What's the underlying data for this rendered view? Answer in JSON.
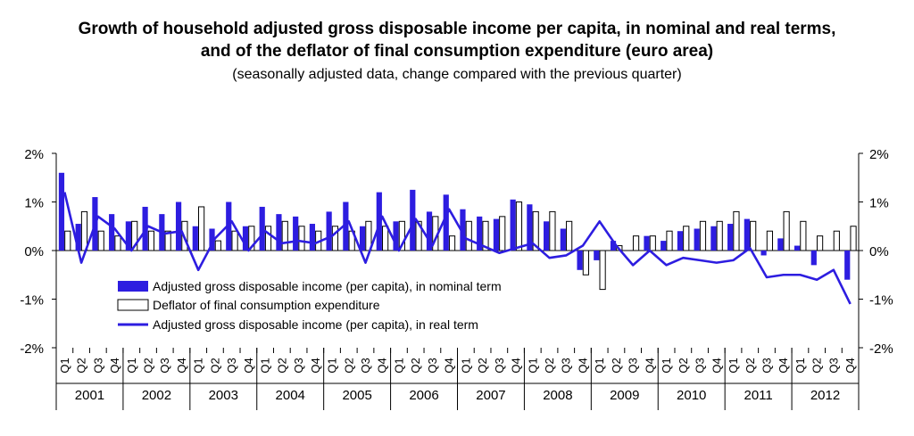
{
  "chart_data": {
    "type": "bar",
    "title_lines": [
      "Growth of household adjusted gross disposable income per capita, in nominal and real terms,",
      "and of the deflator of final consumption expenditure (euro area)"
    ],
    "subtitle": "(seasonally adjusted data, change compared with the previous quarter)",
    "y_ticks": [
      "2%",
      "1%",
      "0%",
      "-1%",
      "-2%"
    ],
    "ylim": [
      -2,
      2
    ],
    "years": [
      "2001",
      "2002",
      "2003",
      "2004",
      "2005",
      "2006",
      "2007",
      "2008",
      "2009",
      "2010",
      "2011",
      "2012"
    ],
    "quarter_labels": [
      "Q1",
      "Q2",
      "Q3",
      "Q4"
    ],
    "series": [
      {
        "name": "Adjusted gross disposable income (per capita), in nominal term",
        "kind": "bar",
        "color": "#2d1de0",
        "values": [
          1.6,
          0.55,
          1.1,
          0.75,
          0.6,
          0.9,
          0.75,
          1.0,
          0.5,
          0.45,
          1.0,
          0.5,
          0.9,
          0.75,
          0.7,
          0.55,
          0.8,
          1.0,
          0.5,
          1.2,
          0.6,
          1.25,
          0.8,
          1.15,
          0.85,
          0.7,
          0.65,
          1.05,
          0.95,
          0.6,
          0.45,
          -0.4,
          -0.2,
          0.2,
          0.0,
          0.3,
          0.2,
          0.4,
          0.45,
          0.5,
          0.55,
          0.65,
          -0.1,
          0.25,
          0.1,
          -0.3,
          0.0,
          -0.6
        ]
      },
      {
        "name": "Deflator of final consumption expenditure",
        "kind": "bar",
        "color": "#ffffff",
        "values": [
          0.4,
          0.8,
          0.4,
          0.3,
          0.6,
          0.4,
          0.4,
          0.6,
          0.9,
          0.2,
          0.4,
          0.5,
          0.5,
          0.6,
          0.5,
          0.4,
          0.5,
          0.4,
          0.6,
          0.5,
          0.6,
          0.6,
          0.7,
          0.3,
          0.6,
          0.6,
          0.7,
          1.0,
          0.8,
          0.8,
          0.6,
          -0.5,
          -0.8,
          0.1,
          0.3,
          0.3,
          0.4,
          0.5,
          0.6,
          0.6,
          0.8,
          0.6,
          0.4,
          0.8,
          0.6,
          0.3,
          0.4,
          0.5
        ]
      },
      {
        "name": "Adjusted gross disposable income (per capita), in real term",
        "kind": "line",
        "color": "#2d1de0",
        "values": [
          1.2,
          -0.25,
          0.7,
          0.45,
          0.0,
          0.5,
          0.35,
          0.4,
          -0.4,
          0.25,
          0.6,
          0.0,
          0.4,
          0.15,
          0.2,
          0.15,
          0.3,
          0.6,
          -0.25,
          0.7,
          0.0,
          0.65,
          0.1,
          0.85,
          0.25,
          0.1,
          -0.05,
          0.05,
          0.15,
          -0.15,
          -0.1,
          0.1,
          0.6,
          0.1,
          -0.3,
          0.0,
          -0.3,
          -0.15,
          -0.2,
          -0.25,
          -0.2,
          0.05,
          -0.55,
          -0.5,
          -0.5,
          -0.6,
          -0.4,
          -1.1
        ]
      }
    ]
  }
}
